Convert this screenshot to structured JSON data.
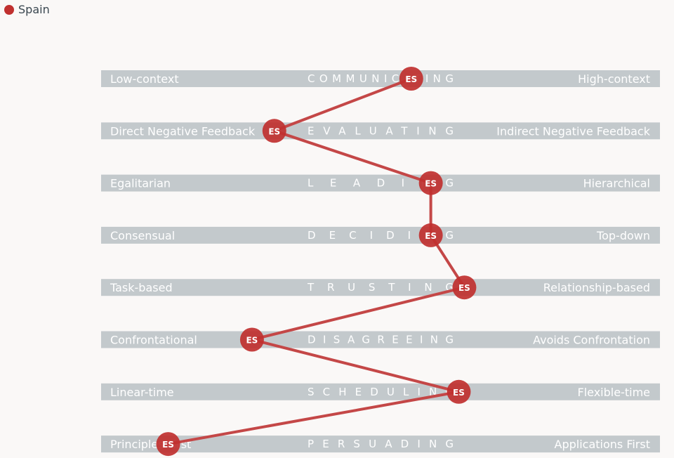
{
  "legend": {
    "label": "Spain",
    "color": "#c0302f"
  },
  "colors": {
    "band": "#c3c9cc",
    "band_text": "#ffffff",
    "series": "#c0302f",
    "line": "#c44747"
  },
  "chart_data": {
    "type": "line",
    "orientation": "horizontal-scales",
    "xlim": [
      0,
      100
    ],
    "scales": [
      {
        "title": "COMMUNICATING",
        "left": "Low-context",
        "right": "High-context"
      },
      {
        "title": "EVALUATING",
        "left": "Direct Negative Feedback",
        "right": "Indirect Negative Feedback"
      },
      {
        "title": "LEADING",
        "left": "Egalitarian",
        "right": "Hierarchical"
      },
      {
        "title": "DECIDING",
        "left": "Consensual",
        "right": "Top-down"
      },
      {
        "title": "TRUSTING",
        "left": "Task-based",
        "right": "Relationship-based"
      },
      {
        "title": "DISAGREEING",
        "left": "Confrontational",
        "right": "Avoids Confrontation"
      },
      {
        "title": "SCHEDULING",
        "left": "Linear-time",
        "right": "Flexible-time"
      },
      {
        "title": "PERSUADING",
        "left": "Principles First",
        "right": "Applications First"
      }
    ],
    "series": [
      {
        "name": "Spain",
        "marker_label": "ES",
        "values": [
          55.5,
          31,
          59,
          59,
          65,
          27,
          64,
          12
        ]
      }
    ]
  }
}
